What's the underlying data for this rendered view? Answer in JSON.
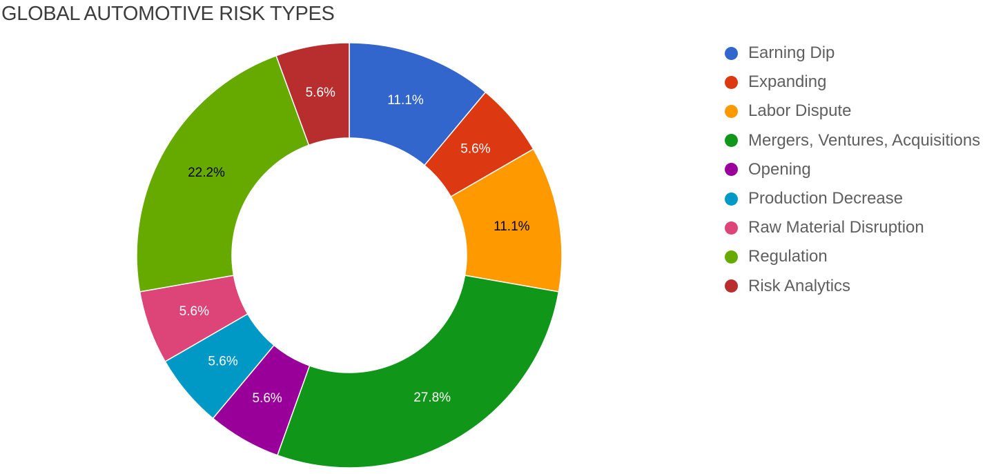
{
  "chart_data": {
    "type": "pie",
    "title": "GLOBAL AUTOMOTIVE RISK TYPES",
    "donut": true,
    "legend_position": "right",
    "categories": [
      "Earning Dip",
      "Expanding",
      "Labor Dispute",
      "Mergers, Ventures, Acquisitions",
      "Opening",
      "Production Decrease",
      "Raw Material Disruption",
      "Regulation",
      "Risk Analytics"
    ],
    "values": [
      11.1,
      5.6,
      11.1,
      27.8,
      5.6,
      5.6,
      5.6,
      22.2,
      5.6
    ],
    "value_labels": [
      "11.1%",
      "5.6%",
      "11.1%",
      "27.8%",
      "5.6%",
      "5.6%",
      "5.6%",
      "22.2%",
      "5.6%"
    ],
    "colors": [
      "#3366cc",
      "#dc3912",
      "#ff9900",
      "#109618",
      "#990099",
      "#0099c6",
      "#dd4477",
      "#66aa00",
      "#b82e2e"
    ],
    "label_colors": [
      "#ffffff",
      "#ffffff",
      "#000000",
      "#ffffff",
      "#ffffff",
      "#ffffff",
      "#ffffff",
      "#000000",
      "#ffffff"
    ]
  }
}
